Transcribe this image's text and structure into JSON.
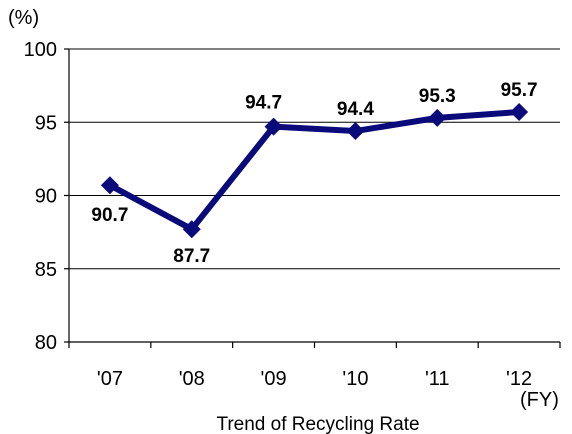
{
  "chart_data": {
    "type": "line",
    "title": "",
    "caption": "Trend of Recycling Rate",
    "y_unit": "(%)",
    "x_unit": "(FY)",
    "categories": [
      "'07",
      "'08",
      "'09",
      "'10",
      "'11",
      "'12"
    ],
    "series": [
      {
        "name": "",
        "values": [
          90.7,
          87.7,
          94.7,
          94.4,
          95.3,
          95.7
        ],
        "labels": [
          "90.7",
          "87.7",
          "94.7",
          "94.4",
          "95.3",
          "95.7"
        ]
      }
    ],
    "ylim": [
      80,
      100
    ],
    "yticks": [
      "80",
      "85",
      "90",
      "95",
      "100"
    ],
    "grid": true,
    "colors": {
      "line": "#0a0a7a",
      "marker": "#0a0a7a",
      "grid": "#000000"
    }
  }
}
